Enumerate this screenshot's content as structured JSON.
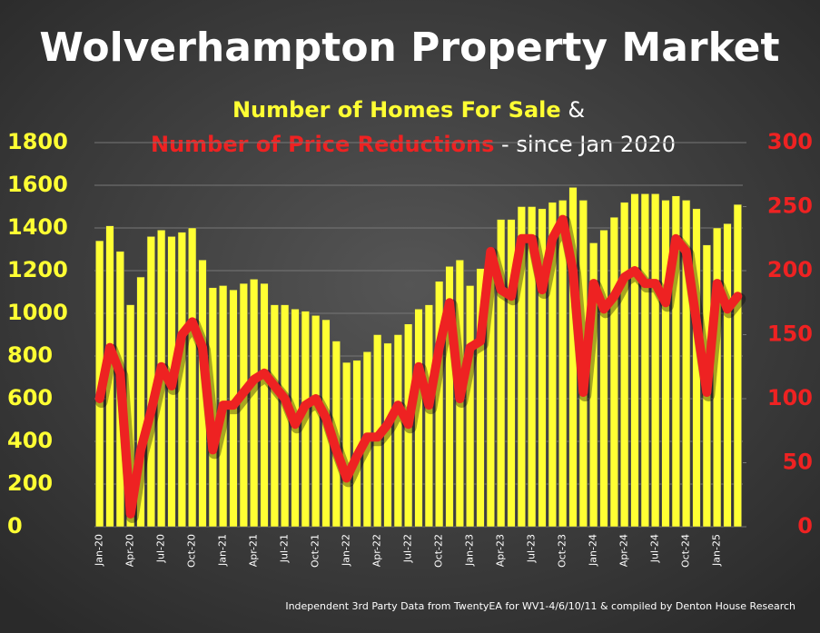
{
  "chart_data": {
    "type": "bar_line",
    "title": "Wolverhampton Property Market",
    "subtitle_joiner": "&",
    "subtitle_suffix": "- since Jan 2020",
    "footnote": "Independent 3rd Party Data from TwentyEA for WV1-4/6/10/11 & compiled by Denton House Research",
    "categories": [
      "Jan-20",
      null,
      null,
      "Apr-20",
      null,
      null,
      "Jul-20",
      null,
      null,
      "Oct-20",
      null,
      null,
      "Jan-21",
      null,
      null,
      "Apr-21",
      null,
      null,
      "Jul-21",
      null,
      null,
      "Oct-21",
      null,
      null,
      "Jan-22",
      null,
      null,
      "Apr-22",
      null,
      null,
      "Jul-22",
      null,
      null,
      "Oct-22",
      null,
      null,
      "Jan-23",
      null,
      null,
      "Apr-23",
      null,
      null,
      "Jul-23",
      null,
      null,
      "Oct-23",
      null,
      null,
      "Jan-24",
      null,
      null,
      "Apr-24",
      null,
      null,
      "Jul-24",
      null,
      null,
      "Oct-24",
      null,
      null,
      "Jan-25",
      null,
      null
    ],
    "series": [
      {
        "name": "Number of Homes For Sale",
        "color": "#ffff33",
        "type": "bar",
        "values": [
          1340,
          1410,
          1290,
          1040,
          1170,
          1360,
          1390,
          1360,
          1380,
          1400,
          1250,
          1120,
          1130,
          1110,
          1140,
          1160,
          1140,
          1040,
          1040,
          1020,
          1010,
          990,
          970,
          870,
          770,
          780,
          820,
          900,
          860,
          900,
          950,
          1020,
          1040,
          1150,
          1220,
          1250,
          1130,
          1210,
          1290,
          1440,
          1440,
          1500,
          1500,
          1490,
          1520,
          1530,
          1590,
          1530,
          1330,
          1390,
          1450,
          1520,
          1560,
          1560,
          1560,
          1530,
          1550,
          1530,
          1490,
          1320,
          1400,
          1420,
          1510
        ]
      },
      {
        "name": "Number of Price Reductions",
        "color": "#ee2222",
        "type": "line",
        "axis": "y2",
        "values": [
          100,
          140,
          120,
          10,
          60,
          90,
          125,
          110,
          150,
          160,
          140,
          60,
          95,
          95,
          105,
          115,
          120,
          110,
          100,
          80,
          95,
          100,
          85,
          60,
          38,
          55,
          70,
          70,
          80,
          95,
          80,
          125,
          95,
          140,
          175,
          100,
          140,
          145,
          215,
          185,
          180,
          225,
          225,
          185,
          225,
          240,
          200,
          105,
          190,
          170,
          180,
          195,
          200,
          190,
          190,
          175,
          225,
          215,
          160,
          105,
          190,
          170,
          180
        ]
      }
    ],
    "ylim": [
      0,
      1800
    ],
    "yticks": [
      0,
      200,
      400,
      600,
      800,
      1000,
      1200,
      1400,
      1600,
      1800
    ],
    "y2lim": [
      0,
      300
    ],
    "y2ticks": [
      0,
      50,
      100,
      150,
      200,
      250,
      300
    ],
    "grid": true
  }
}
